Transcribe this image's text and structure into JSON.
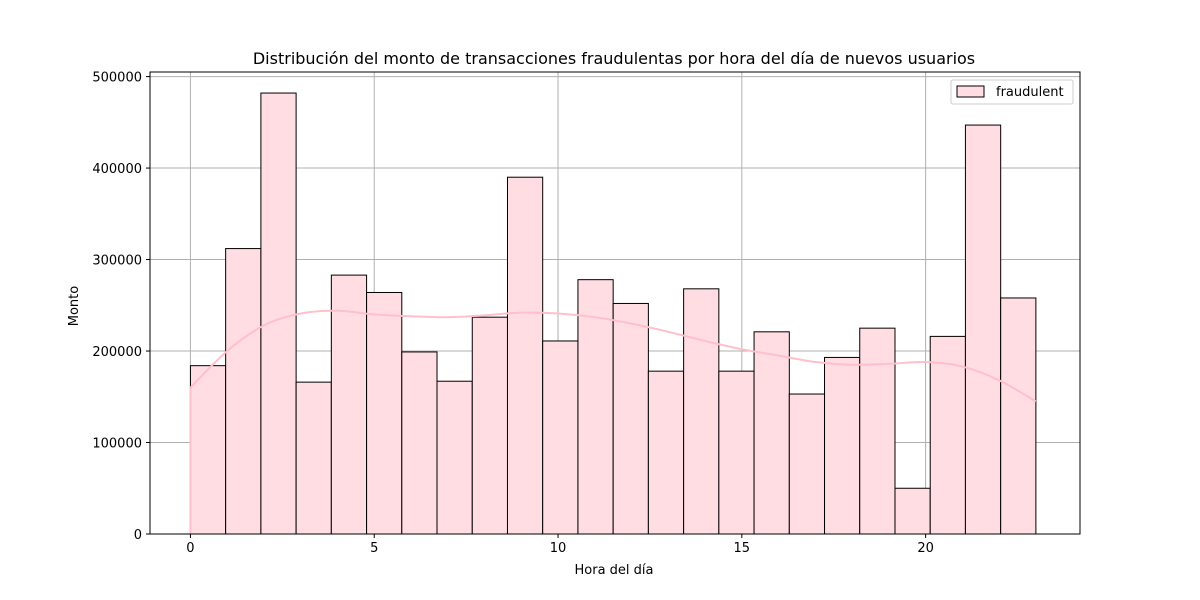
{
  "chart_data": {
    "type": "bar",
    "title": "Distribución del monto de transacciones fraudulentas por hora del día de nuevos usuarios",
    "xlabel": "Hora del día",
    "ylabel": "Monto",
    "xlim": [
      -1.1,
      24.2
    ],
    "ylim": [
      0,
      505000
    ],
    "xticks": [
      0,
      5,
      10,
      15,
      20
    ],
    "yticks": [
      0,
      100000,
      200000,
      300000,
      400000,
      500000
    ],
    "grid": true,
    "legend_position": "top-right",
    "series": [
      {
        "name": "fraudulent",
        "bar_color": "#ffdde3",
        "edge_color": "#000000",
        "kde_color": "#ffc0cb",
        "bins": [
          {
            "x0": 0.0,
            "x1": 0.958,
            "value": 184000
          },
          {
            "x0": 0.958,
            "x1": 1.917,
            "value": 312000
          },
          {
            "x0": 1.917,
            "x1": 2.875,
            "value": 482000
          },
          {
            "x0": 2.875,
            "x1": 3.833,
            "value": 166000
          },
          {
            "x0": 3.833,
            "x1": 4.792,
            "value": 283000
          },
          {
            "x0": 4.792,
            "x1": 5.75,
            "value": 264000
          },
          {
            "x0": 5.75,
            "x1": 6.708,
            "value": 199000
          },
          {
            "x0": 6.708,
            "x1": 7.667,
            "value": 167000
          },
          {
            "x0": 7.667,
            "x1": 8.625,
            "value": 237000
          },
          {
            "x0": 8.625,
            "x1": 9.583,
            "value": 390000
          },
          {
            "x0": 9.583,
            "x1": 10.542,
            "value": 211000
          },
          {
            "x0": 10.542,
            "x1": 11.5,
            "value": 278000
          },
          {
            "x0": 11.5,
            "x1": 12.458,
            "value": 252000
          },
          {
            "x0": 12.458,
            "x1": 13.417,
            "value": 178000
          },
          {
            "x0": 13.417,
            "x1": 14.375,
            "value": 268000
          },
          {
            "x0": 14.375,
            "x1": 15.333,
            "value": 178000
          },
          {
            "x0": 15.333,
            "x1": 16.292,
            "value": 221000
          },
          {
            "x0": 16.292,
            "x1": 17.25,
            "value": 153000
          },
          {
            "x0": 17.25,
            "x1": 18.208,
            "value": 193000
          },
          {
            "x0": 18.208,
            "x1": 19.167,
            "value": 225000
          },
          {
            "x0": 19.167,
            "x1": 20.125,
            "value": 50000
          },
          {
            "x0": 20.125,
            "x1": 21.083,
            "value": 216000
          },
          {
            "x0": 21.083,
            "x1": 22.042,
            "value": 447000
          },
          {
            "x0": 22.042,
            "x1": 23.0,
            "value": 258000
          }
        ],
        "kde": {
          "x": [
            0,
            1,
            2,
            3,
            4,
            5,
            6,
            7,
            8,
            9,
            10,
            11,
            12,
            13,
            14,
            15,
            16,
            17,
            18,
            19,
            20,
            21,
            22,
            23
          ],
          "y": [
            160000,
            200000,
            228000,
            241000,
            244000,
            240000,
            238000,
            237000,
            239000,
            242000,
            241000,
            237000,
            230000,
            221000,
            211000,
            202000,
            195000,
            188000,
            185000,
            186000,
            188000,
            183000,
            168000,
            145000
          ]
        }
      }
    ]
  }
}
